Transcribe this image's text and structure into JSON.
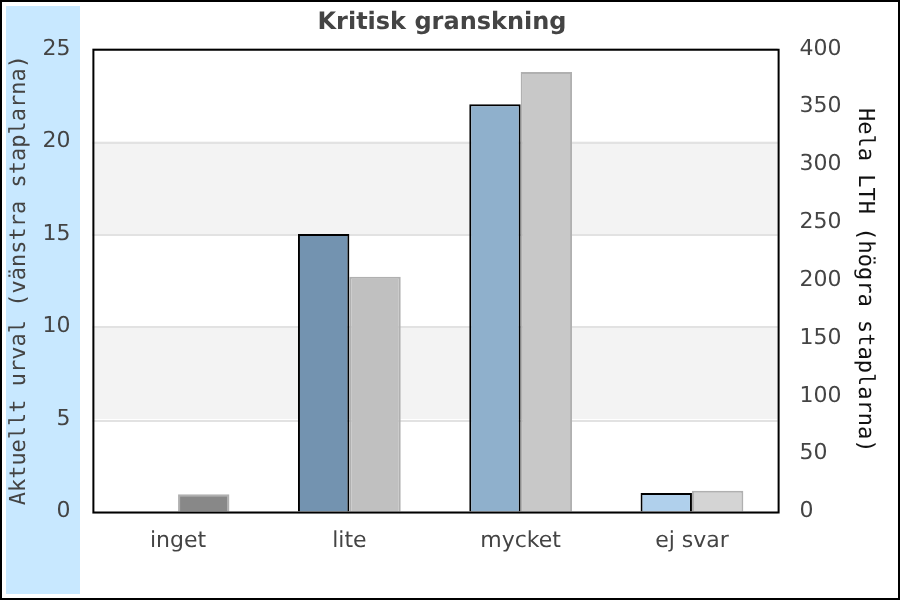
{
  "chart_data": {
    "type": "bar",
    "title": "Kritisk granskning",
    "ylabel": "Aktuellt urval (vänstra staplarna)",
    "y2label": "Hela LTH (högra staplarna)",
    "categories": [
      "inget",
      "lite",
      "mycket",
      "ej svar"
    ],
    "series": [
      {
        "colors": [
          "#7393b0",
          "#7393b0",
          "#8fb0cc",
          "#b0d0ec"
        ],
        "values": [
          0,
          15,
          22,
          1
        ]
      },
      {
        "colors": [
          "#888888",
          "#c0c0c0",
          "#c8c8c8",
          "#d4d4d4"
        ],
        "values": [
          15,
          203,
          380,
          18
        ],
        "axis": "y2"
      }
    ],
    "ylim": [
      0,
      25
    ],
    "yticks": [
      0,
      5,
      10,
      15,
      20,
      25
    ],
    "y2lim": [
      0,
      400
    ],
    "y2ticks": [
      0,
      50,
      100,
      150,
      200,
      250,
      300,
      350,
      400
    ],
    "grid": "y",
    "legend": false
  }
}
